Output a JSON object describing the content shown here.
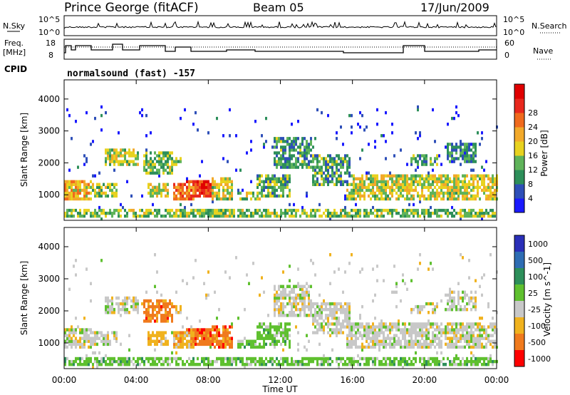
{
  "header": {
    "station": "Prince George (fitACF)",
    "beam": "Beam 05",
    "date": "17/Jun/2009"
  },
  "strip_labels": {
    "nsky": "N.Sky",
    "freq_top": "Freq.",
    "freq_unit": "[MHz]",
    "cpid": "CPID",
    "nsearch": "N.Search",
    "nave": "Nave",
    "nsky_top_tick": "10^5",
    "nsky_bottom_tick": "10^0",
    "nsearch_top_tick": "10^5",
    "nsearch_bottom_tick": "10^0",
    "freq_ticks": [
      "18",
      "8"
    ],
    "nave_ticks": [
      "60",
      "0"
    ],
    "cpid_text": "normalsound (fast) -157"
  },
  "chart_data": [
    {
      "type": "heatmap",
      "title": "Power",
      "xlabel": "Time UT",
      "ylabel": "Slant Range [km]",
      "x_ticks": [
        "00:00",
        "04:00",
        "08:00",
        "12:00",
        "16:00",
        "20:00",
        "00:00"
      ],
      "y_ticks": [
        "1000",
        "2000",
        "3000",
        "4000"
      ],
      "ylim": [
        200,
        4600
      ],
      "colorbar_label": "Power [dB]",
      "colorbar_ticks": [
        "4",
        "8",
        "12",
        "16",
        "20",
        "24",
        "28"
      ],
      "colorbar_colors": [
        "#1a1aff",
        "#2e4fb8",
        "#2d8f5a",
        "#5fb35a",
        "#e8d21f",
        "#f2a92a",
        "#f06a1d",
        "#e8281d",
        "#e00000"
      ]
    },
    {
      "type": "heatmap",
      "title": "Velocity",
      "xlabel": "Time UT",
      "ylabel": "Slant Range [km]",
      "x_ticks": [
        "00:00",
        "04:00",
        "08:00",
        "12:00",
        "16:00",
        "20:00",
        "00:00"
      ],
      "y_ticks": [
        "1000",
        "2000",
        "3000",
        "4000"
      ],
      "ylim": [
        200,
        4600
      ],
      "colorbar_label": "Velocity [m s^-1]",
      "colorbar_ticks": [
        "1000",
        "500",
        "100",
        "25",
        "-25",
        "-100",
        "-500",
        "-1000"
      ],
      "colorbar_colors": [
        "#2a2fb8",
        "#2e6db3",
        "#2d8f5a",
        "#5fc02f",
        "#c8c8c8",
        "#f0b21e",
        "#f07a1d",
        "#ff0000"
      ]
    }
  ]
}
